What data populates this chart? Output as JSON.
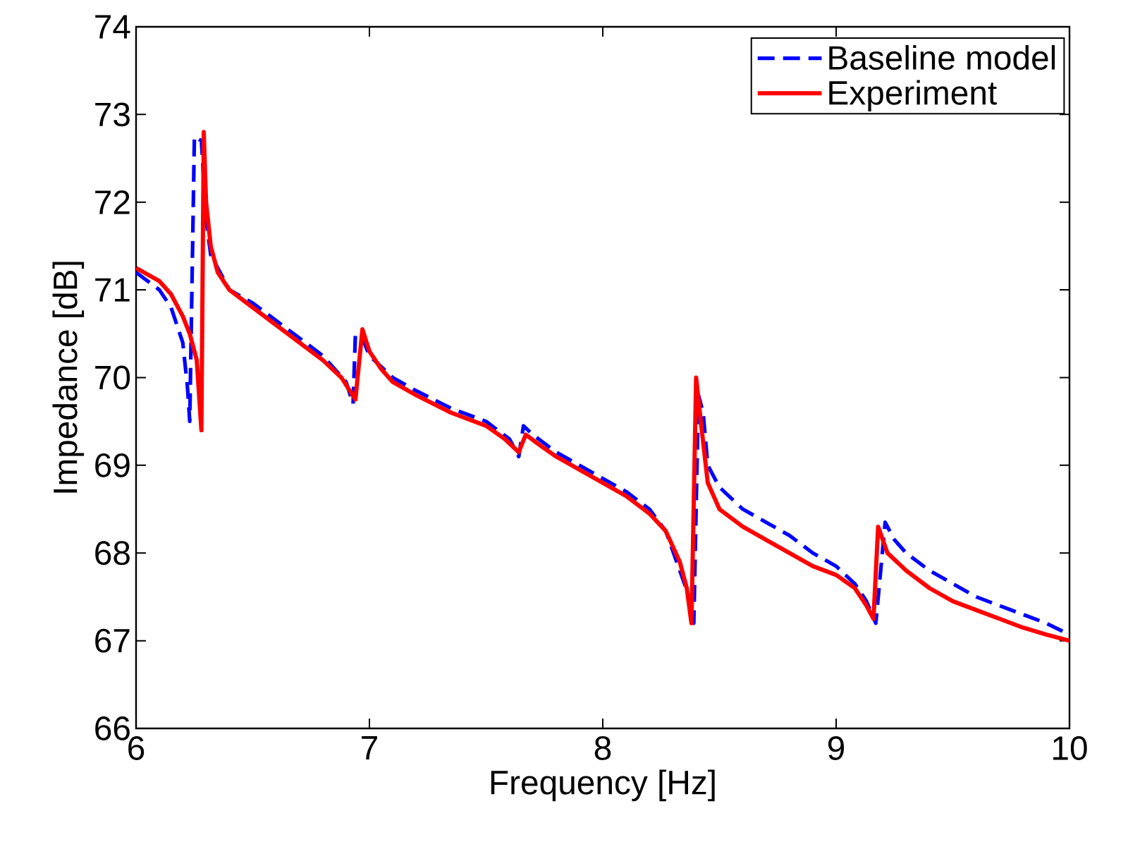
{
  "chart_data": {
    "type": "line",
    "xlabel": "Frequency [Hz]",
    "ylabel": "Impedance [dB]",
    "xlim": [
      6,
      10
    ],
    "ylim": [
      66,
      74
    ],
    "xticks": [
      6,
      7,
      8,
      9,
      10
    ],
    "yticks": [
      66,
      67,
      68,
      69,
      70,
      71,
      72,
      73,
      74
    ],
    "grid": false,
    "legend": "top right",
    "marker": "none",
    "series": [
      {
        "name": "Baseline model",
        "color": "#0000ff",
        "line_style": "dashed",
        "x": [
          6.0,
          6.1,
          6.15,
          6.2,
          6.22,
          6.23,
          6.25,
          6.28,
          6.3,
          6.32,
          6.4,
          6.5,
          6.6,
          6.7,
          6.8,
          6.9,
          6.93,
          6.94,
          6.97,
          7.0,
          7.1,
          7.2,
          7.35,
          7.5,
          7.6,
          7.64,
          7.66,
          7.7,
          7.8,
          7.9,
          8.0,
          8.1,
          8.2,
          8.27,
          8.33,
          8.37,
          8.39,
          8.41,
          8.43,
          8.45,
          8.5,
          8.6,
          8.7,
          8.8,
          8.9,
          9.0,
          9.08,
          9.13,
          9.17,
          9.21,
          9.25,
          9.3,
          9.4,
          9.5,
          9.6,
          9.7,
          9.8,
          9.9,
          10.0
        ],
        "values": [
          71.2,
          71.0,
          70.8,
          70.4,
          69.9,
          69.5,
          72.75,
          72.7,
          71.8,
          71.4,
          71.0,
          70.85,
          70.65,
          70.45,
          70.25,
          69.95,
          69.7,
          70.5,
          70.45,
          70.25,
          70.0,
          69.85,
          69.65,
          69.5,
          69.3,
          69.1,
          69.45,
          69.35,
          69.15,
          69.0,
          68.85,
          68.7,
          68.5,
          68.25,
          null,
          67.5,
          67.2,
          69.8,
          69.6,
          69.0,
          68.75,
          68.5,
          68.35,
          68.2,
          68.0,
          67.85,
          67.65,
          67.45,
          67.2,
          68.35,
          68.15,
          68.0,
          67.8,
          67.65,
          67.5,
          67.4,
          67.3,
          67.2,
          67.07
        ]
      },
      {
        "name": "Experiment",
        "color": "#ff0000",
        "line_style": "solid",
        "x": [
          6.0,
          6.1,
          6.15,
          6.2,
          6.23,
          6.26,
          6.28,
          6.29,
          6.3,
          6.32,
          6.35,
          6.4,
          6.5,
          6.6,
          6.7,
          6.8,
          6.88,
          6.94,
          6.97,
          7.0,
          7.05,
          7.1,
          7.2,
          7.35,
          7.5,
          7.58,
          7.64,
          7.67,
          7.72,
          7.8,
          7.9,
          8.0,
          8.1,
          8.2,
          8.27,
          8.33,
          8.36,
          8.38,
          8.4,
          8.42,
          8.45,
          8.5,
          8.6,
          8.7,
          8.8,
          8.9,
          9.0,
          9.08,
          9.13,
          9.16,
          9.18,
          9.22,
          9.3,
          9.4,
          9.5,
          9.6,
          9.7,
          9.8,
          9.9,
          10.0
        ],
        "values": [
          71.25,
          71.1,
          70.95,
          70.7,
          70.5,
          70.2,
          69.4,
          72.8,
          72.0,
          71.5,
          71.2,
          71.0,
          70.8,
          70.6,
          70.4,
          70.2,
          70.0,
          69.75,
          70.55,
          70.3,
          70.1,
          69.95,
          69.8,
          69.6,
          69.45,
          69.3,
          69.15,
          69.35,
          69.25,
          69.1,
          68.95,
          68.8,
          68.65,
          68.45,
          68.25,
          67.9,
          67.6,
          67.2,
          70.0,
          69.5,
          68.8,
          68.5,
          68.3,
          68.15,
          68.0,
          67.85,
          67.75,
          67.6,
          67.4,
          67.25,
          68.3,
          68.0,
          67.8,
          67.6,
          67.45,
          67.35,
          67.25,
          67.15,
          67.07,
          67.0
        ]
      }
    ]
  }
}
